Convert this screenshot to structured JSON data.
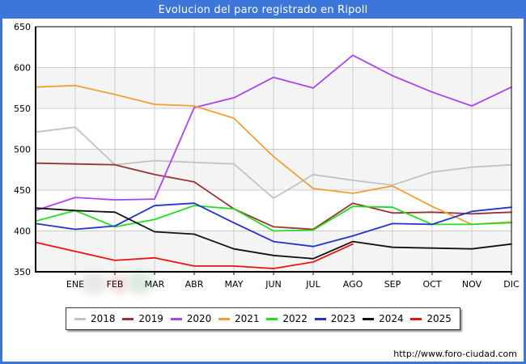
{
  "title": "Evolucion del paro registrado en Ripoll",
  "footer": {
    "url": "http://www.foro-ciudad.com"
  },
  "colors": {
    "frame_blue": "#3b76d8",
    "band_gray": "#f4f4f4",
    "grid_gray": "#cccccc",
    "axis_black": "#000000"
  },
  "chart_data": {
    "type": "line",
    "title": "Evolucion del paro registrado en Ripoll",
    "x_labels": [
      "",
      "ENE",
      "FEB",
      "MAR",
      "ABR",
      "MAY",
      "JUN",
      "JUL",
      "AGO",
      "SEP",
      "OCT",
      "NOV",
      "DIC"
    ],
    "y_ticks": [
      350,
      400,
      450,
      500,
      550,
      600,
      650
    ],
    "ylim": [
      350,
      650
    ],
    "grid": true,
    "legend_position": "bottom",
    "series": [
      {
        "name": "2018",
        "color": "#c2c2c2",
        "values": [
          521,
          527,
          481,
          486,
          484,
          482,
          440,
          469,
          462,
          456,
          472,
          478,
          481
        ]
      },
      {
        "name": "2019",
        "color": "#993333",
        "values": [
          483,
          482,
          481,
          469,
          460,
          427,
          405,
          402,
          434,
          422,
          423,
          421,
          423
        ]
      },
      {
        "name": "2020",
        "color": "#aa44ee",
        "values": [
          425,
          441,
          438,
          439,
          551,
          563,
          588,
          575,
          615,
          590,
          570,
          553,
          576
        ]
      },
      {
        "name": "2021",
        "color": "#f0a030",
        "values": [
          576,
          578,
          567,
          555,
          553,
          538,
          491,
          452,
          446,
          455,
          430,
          408,
          411
        ]
      },
      {
        "name": "2022",
        "color": "#22dd22",
        "values": [
          412,
          425,
          405,
          414,
          431,
          427,
          400,
          401,
          430,
          429,
          408,
          408,
          410
        ]
      },
      {
        "name": "2023",
        "color": "#2233cc",
        "values": [
          409,
          402,
          406,
          431,
          434,
          410,
          387,
          381,
          394,
          409,
          408,
          424,
          429
        ]
      },
      {
        "name": "2024",
        "color": "#111111",
        "values": [
          428,
          425,
          423,
          399,
          396,
          378,
          370,
          366,
          387,
          380,
          379,
          378,
          384
        ]
      },
      {
        "name": "2025",
        "color": "#ee1111",
        "values": [
          386,
          375,
          364,
          367,
          357,
          357,
          354,
          362,
          384,
          null,
          null,
          null,
          null
        ]
      }
    ]
  }
}
